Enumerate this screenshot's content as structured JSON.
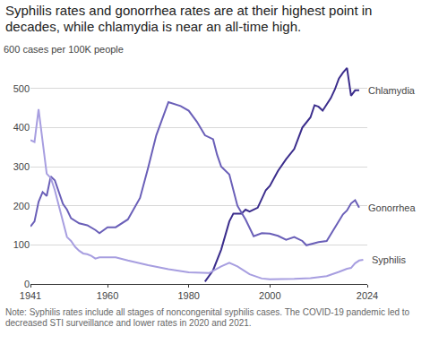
{
  "chart_data": {
    "type": "line",
    "title": "Syphilis rates and gonorrhea rates are at their highest point in decades, while chlamydia is near an all-time high.",
    "note": "Note: Syphilis rates include all stages of noncongenital syphilis cases. The COVID-19 pandemic led to decreased STI surveillance and lower rates in 2020 and 2021.",
    "xlim": [
      1941,
      2024
    ],
    "xticks": [
      1941,
      1960,
      1980,
      2000,
      2024
    ],
    "ylim": [
      0,
      600
    ],
    "yticks": [
      0,
      100,
      200,
      300,
      400,
      500,
      {
        "value": 600,
        "label": "600 cases per 100K people"
      }
    ],
    "grid": true,
    "series": [
      {
        "name": "Chlamydia",
        "color": "#3b2d8c",
        "x": [
          1984,
          1986,
          1988,
          1990,
          1991,
          1993,
          1994,
          1995,
          1997,
          1999,
          2000,
          2002,
          2004,
          2006,
          2008,
          2010,
          2011,
          2012,
          2013,
          2015,
          2016,
          2017,
          2018,
          2019,
          2020,
          2021,
          2022
        ],
        "values": [
          6,
          35,
          88,
          160,
          180,
          180,
          190,
          185,
          195,
          240,
          251,
          289,
          319,
          345,
          400,
          426,
          457,
          453,
          443,
          475,
          497,
          525,
          540,
          552,
          481,
          495,
          495
        ]
      },
      {
        "name": "Gonorrhea",
        "color": "#6a5fb8",
        "x": [
          1941,
          1942,
          1943,
          1944,
          1945,
          1946,
          1947,
          1948,
          1949,
          1950,
          1951,
          1953,
          1955,
          1957,
          1958,
          1960,
          1962,
          1965,
          1968,
          1970,
          1972,
          1975,
          1976,
          1978,
          1980,
          1982,
          1984,
          1986,
          1987,
          1988,
          1990,
          1992,
          1994,
          1996,
          1998,
          2000,
          2002,
          2004,
          2006,
          2008,
          2009,
          2012,
          2014,
          2016,
          2018,
          2019,
          2020,
          2021,
          2022
        ],
        "values": [
          147,
          160,
          210,
          235,
          225,
          275,
          265,
          235,
          205,
          190,
          168,
          155,
          150,
          138,
          130,
          145,
          145,
          165,
          220,
          297,
          380,
          465,
          462,
          455,
          443,
          415,
          380,
          370,
          330,
          300,
          280,
          200,
          165,
          122,
          130,
          129,
          123,
          113,
          120,
          110,
          99,
          107,
          110,
          145,
          178,
          188,
          206,
          214,
          195
        ]
      },
      {
        "name": "Syphilis",
        "color": "#a79ee0",
        "x": [
          1941,
          1942,
          1943,
          1944,
          1945,
          1946,
          1947,
          1948,
          1949,
          1950,
          1951,
          1952,
          1953,
          1954,
          1955,
          1956,
          1957,
          1958,
          1960,
          1962,
          1965,
          1970,
          1975,
          1980,
          1985,
          1988,
          1990,
          1992,
          1995,
          1998,
          2000,
          2003,
          2006,
          2010,
          2014,
          2017,
          2019,
          2020,
          2021,
          2022,
          2023
        ],
        "values": [
          368,
          363,
          447,
          370,
          282,
          271,
          240,
          200,
          160,
          120,
          110,
          95,
          85,
          78,
          76,
          72,
          65,
          68,
          68,
          68,
          60,
          48,
          38,
          30,
          28,
          45,
          54,
          45,
          25,
          14,
          12,
          12,
          13,
          15,
          20,
          31,
          39,
          41,
          53,
          60,
          62
        ]
      }
    ]
  }
}
